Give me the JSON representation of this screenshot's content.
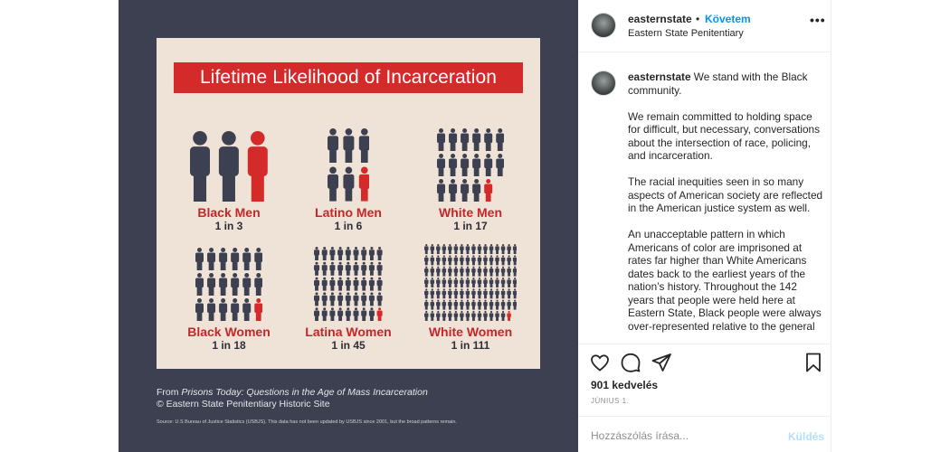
{
  "post_image": {
    "title": "Lifetime Likelihood of Incarceration",
    "groups": [
      {
        "label": "Black Men",
        "ratio": "1 in 3",
        "highlighted": 1,
        "total": 3
      },
      {
        "label": "Latino Men",
        "ratio": "1 in 6",
        "highlighted": 1,
        "total": 6
      },
      {
        "label": "White Men",
        "ratio": "1 in 17",
        "highlighted": 1,
        "total": 17
      },
      {
        "label": "Black Women",
        "ratio": "1 in 18",
        "highlighted": 1,
        "total": 18
      },
      {
        "label": "Latina Women",
        "ratio": "1 in 45",
        "highlighted": 1,
        "total": 45
      },
      {
        "label": "White Women",
        "ratio": "1 in 111",
        "highlighted": 1,
        "total": 111
      }
    ],
    "credit_prefix": "From ",
    "credit_book": "Prisons Today: Questions in the Age of Mass Incarceration",
    "credit_line2": "© Eastern State Penitentiary Historic Site",
    "source": "Source: U.S Bureau of Justice Statistics (USBJS). This data has not been updated by USBJS since 2001, but the broad patterns remain.",
    "colors": {
      "highlight": "#d42a2a",
      "figure": "#3d4050",
      "poster_bg": "#efe2d6",
      "frame_bg": "#3d4050"
    }
  },
  "header": {
    "username": "easternstate",
    "separator": "•",
    "follow_label": "Követem",
    "location": "Eastern State Penitentiary",
    "more_icon": "more-horizontal-icon"
  },
  "caption": {
    "username": "easternstate",
    "paragraphs": [
      "We stand with the Black community.",
      "We remain committed to holding space for difficult, but necessary, conversations about the intersection of race, policing, and incarceration.",
      "The racial inequities seen in so many aspects of American society are reflected in the American justice system as well.",
      "An unacceptable pattern in which Americans of color are imprisoned at rates far higher than White Americans dates back to the earliest years of the nation’s history. Throughout the 142 years that people were held here at Eastern State, Black people were always over-represented relative to the general"
    ]
  },
  "actions": {
    "icons": [
      "heart-icon",
      "comment-icon",
      "share-icon",
      "bookmark-icon"
    ],
    "likes": "901 kedvelés",
    "date": "JÚNIUS 1."
  },
  "comment": {
    "placeholder": "Hozzászólás írása...",
    "send_label": "Küldés"
  }
}
